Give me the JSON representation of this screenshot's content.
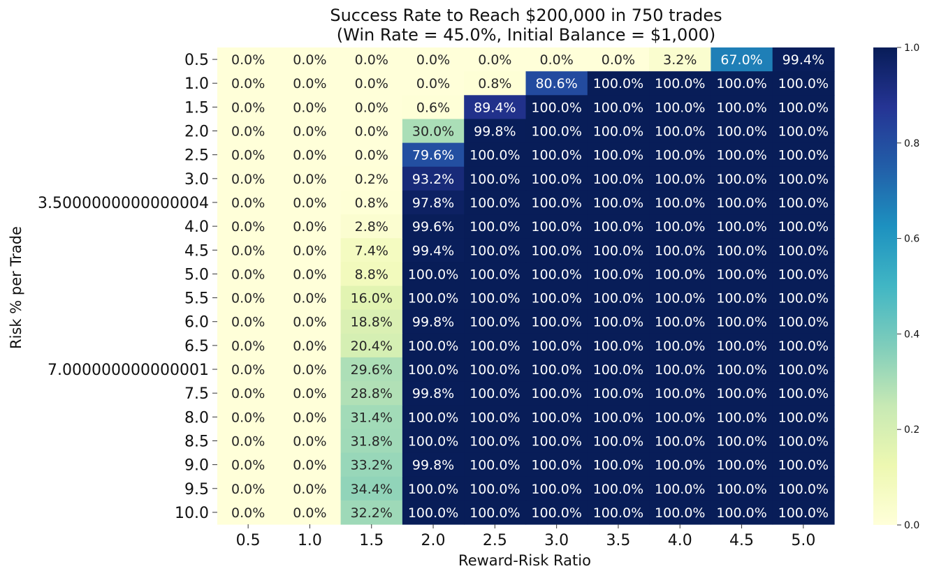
{
  "chart_data": {
    "type": "heatmap",
    "title_line1": "Success Rate to Reach $200,000 in 750 trades",
    "title_line2": "(Win Rate = 45.0%, Initial Balance = $1,000)",
    "xlabel": "Reward-Risk Ratio",
    "ylabel": "Risk % per Trade",
    "x_categories": [
      "0.5",
      "1.0",
      "1.5",
      "2.0",
      "2.5",
      "3.0",
      "3.5",
      "4.0",
      "4.5",
      "5.0"
    ],
    "y_categories": [
      "0.5",
      "1.0",
      "1.5",
      "2.0",
      "2.5",
      "3.0",
      "3.5000000000000004",
      "4.0",
      "4.5",
      "5.0",
      "5.5",
      "6.0",
      "6.5",
      "7.000000000000001",
      "7.5",
      "8.0",
      "8.5",
      "9.0",
      "9.5",
      "10.0"
    ],
    "values": [
      [
        0.0,
        0.0,
        0.0,
        0.0,
        0.0,
        0.0,
        0.0,
        0.032,
        0.67,
        0.994
      ],
      [
        0.0,
        0.0,
        0.0,
        0.0,
        0.008,
        0.806,
        1.0,
        1.0,
        1.0,
        1.0
      ],
      [
        0.0,
        0.0,
        0.0,
        0.006,
        0.894,
        1.0,
        1.0,
        1.0,
        1.0,
        1.0
      ],
      [
        0.0,
        0.0,
        0.0,
        0.3,
        0.998,
        1.0,
        1.0,
        1.0,
        1.0,
        1.0
      ],
      [
        0.0,
        0.0,
        0.0,
        0.796,
        1.0,
        1.0,
        1.0,
        1.0,
        1.0,
        1.0
      ],
      [
        0.0,
        0.0,
        0.002,
        0.932,
        1.0,
        1.0,
        1.0,
        1.0,
        1.0,
        1.0
      ],
      [
        0.0,
        0.0,
        0.008,
        0.978,
        1.0,
        1.0,
        1.0,
        1.0,
        1.0,
        1.0
      ],
      [
        0.0,
        0.0,
        0.028,
        0.996,
        1.0,
        1.0,
        1.0,
        1.0,
        1.0,
        1.0
      ],
      [
        0.0,
        0.0,
        0.074,
        0.994,
        1.0,
        1.0,
        1.0,
        1.0,
        1.0,
        1.0
      ],
      [
        0.0,
        0.0,
        0.088,
        1.0,
        1.0,
        1.0,
        1.0,
        1.0,
        1.0,
        1.0
      ],
      [
        0.0,
        0.0,
        0.16,
        1.0,
        1.0,
        1.0,
        1.0,
        1.0,
        1.0,
        1.0
      ],
      [
        0.0,
        0.0,
        0.188,
        0.998,
        1.0,
        1.0,
        1.0,
        1.0,
        1.0,
        1.0
      ],
      [
        0.0,
        0.0,
        0.204,
        1.0,
        1.0,
        1.0,
        1.0,
        1.0,
        1.0,
        1.0
      ],
      [
        0.0,
        0.0,
        0.296,
        1.0,
        1.0,
        1.0,
        1.0,
        1.0,
        1.0,
        1.0
      ],
      [
        0.0,
        0.0,
        0.288,
        0.998,
        1.0,
        1.0,
        1.0,
        1.0,
        1.0,
        1.0
      ],
      [
        0.0,
        0.0,
        0.314,
        1.0,
        1.0,
        1.0,
        1.0,
        1.0,
        1.0,
        1.0
      ],
      [
        0.0,
        0.0,
        0.318,
        1.0,
        1.0,
        1.0,
        1.0,
        1.0,
        1.0,
        1.0
      ],
      [
        0.0,
        0.0,
        0.332,
        0.998,
        1.0,
        1.0,
        1.0,
        1.0,
        1.0,
        1.0
      ],
      [
        0.0,
        0.0,
        0.344,
        1.0,
        1.0,
        1.0,
        1.0,
        1.0,
        1.0,
        1.0
      ],
      [
        0.0,
        0.0,
        0.322,
        1.0,
        1.0,
        1.0,
        1.0,
        1.0,
        1.0,
        1.0
      ]
    ],
    "colorbar": {
      "range": [
        0.0,
        1.0
      ],
      "ticks": [
        "0.0",
        "0.2",
        "0.4",
        "0.6",
        "0.8",
        "1.0"
      ],
      "colormap": "YlGnBu"
    },
    "grid": false,
    "cell_annotations": "percent"
  }
}
